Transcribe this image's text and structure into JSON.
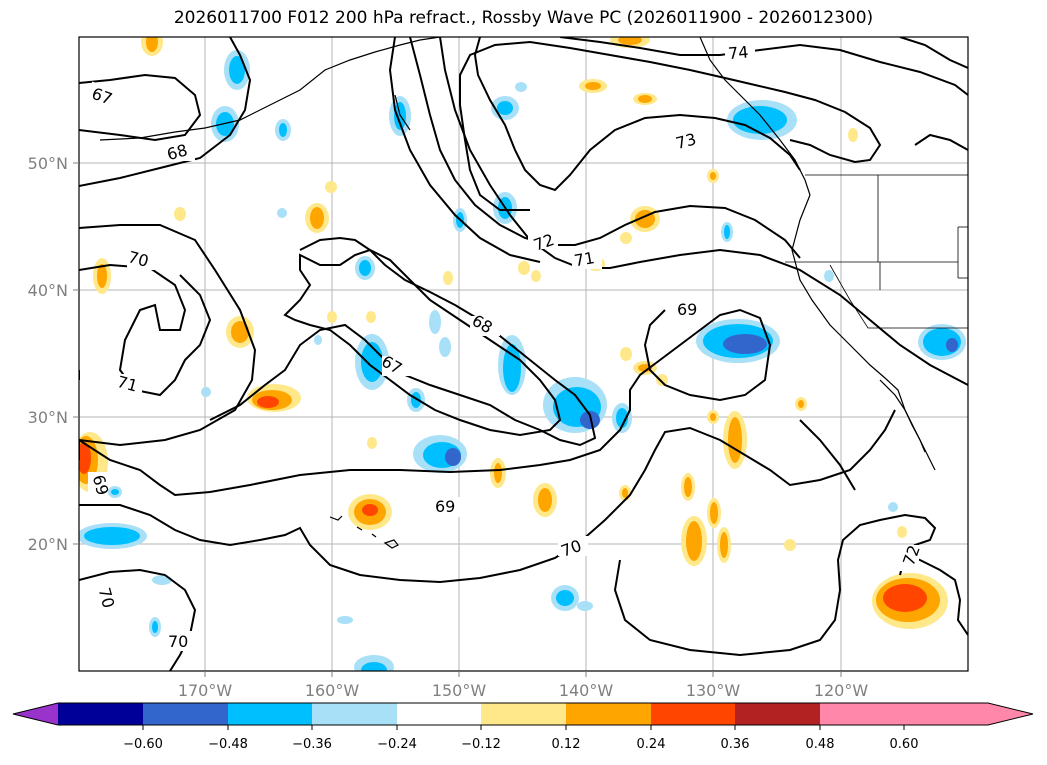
{
  "title": "2026011700 F012 200 hPa refract., Rossby Wave PC (2026011900 - 2026012300)",
  "lat_ticks": [
    "50°N",
    "40°N",
    "30°N",
    "20°N"
  ],
  "lon_ticks": [
    "170°W",
    "160°W",
    "150°W",
    "140°W",
    "130°W",
    "120°W"
  ],
  "contour_labels": [
    "67",
    "68",
    "70",
    "71",
    "69",
    "72",
    "73",
    "74",
    "68",
    "71",
    "69",
    "70",
    "69",
    "70",
    "70",
    "72",
    "67"
  ],
  "colorbar": {
    "ticks": [
      "−0.60",
      "−0.48",
      "−0.36",
      "−0.24",
      "−0.12",
      "0.12",
      "0.24",
      "0.36",
      "0.48",
      "0.60"
    ],
    "colors": [
      "#9933cc",
      "#000099",
      "#3366cc",
      "#00bfff",
      "#a8e0f8",
      "#ffffff",
      "#ffe88a",
      "#ffa500",
      "#ff4500",
      "#b22222",
      "#ff88aa"
    ]
  }
}
